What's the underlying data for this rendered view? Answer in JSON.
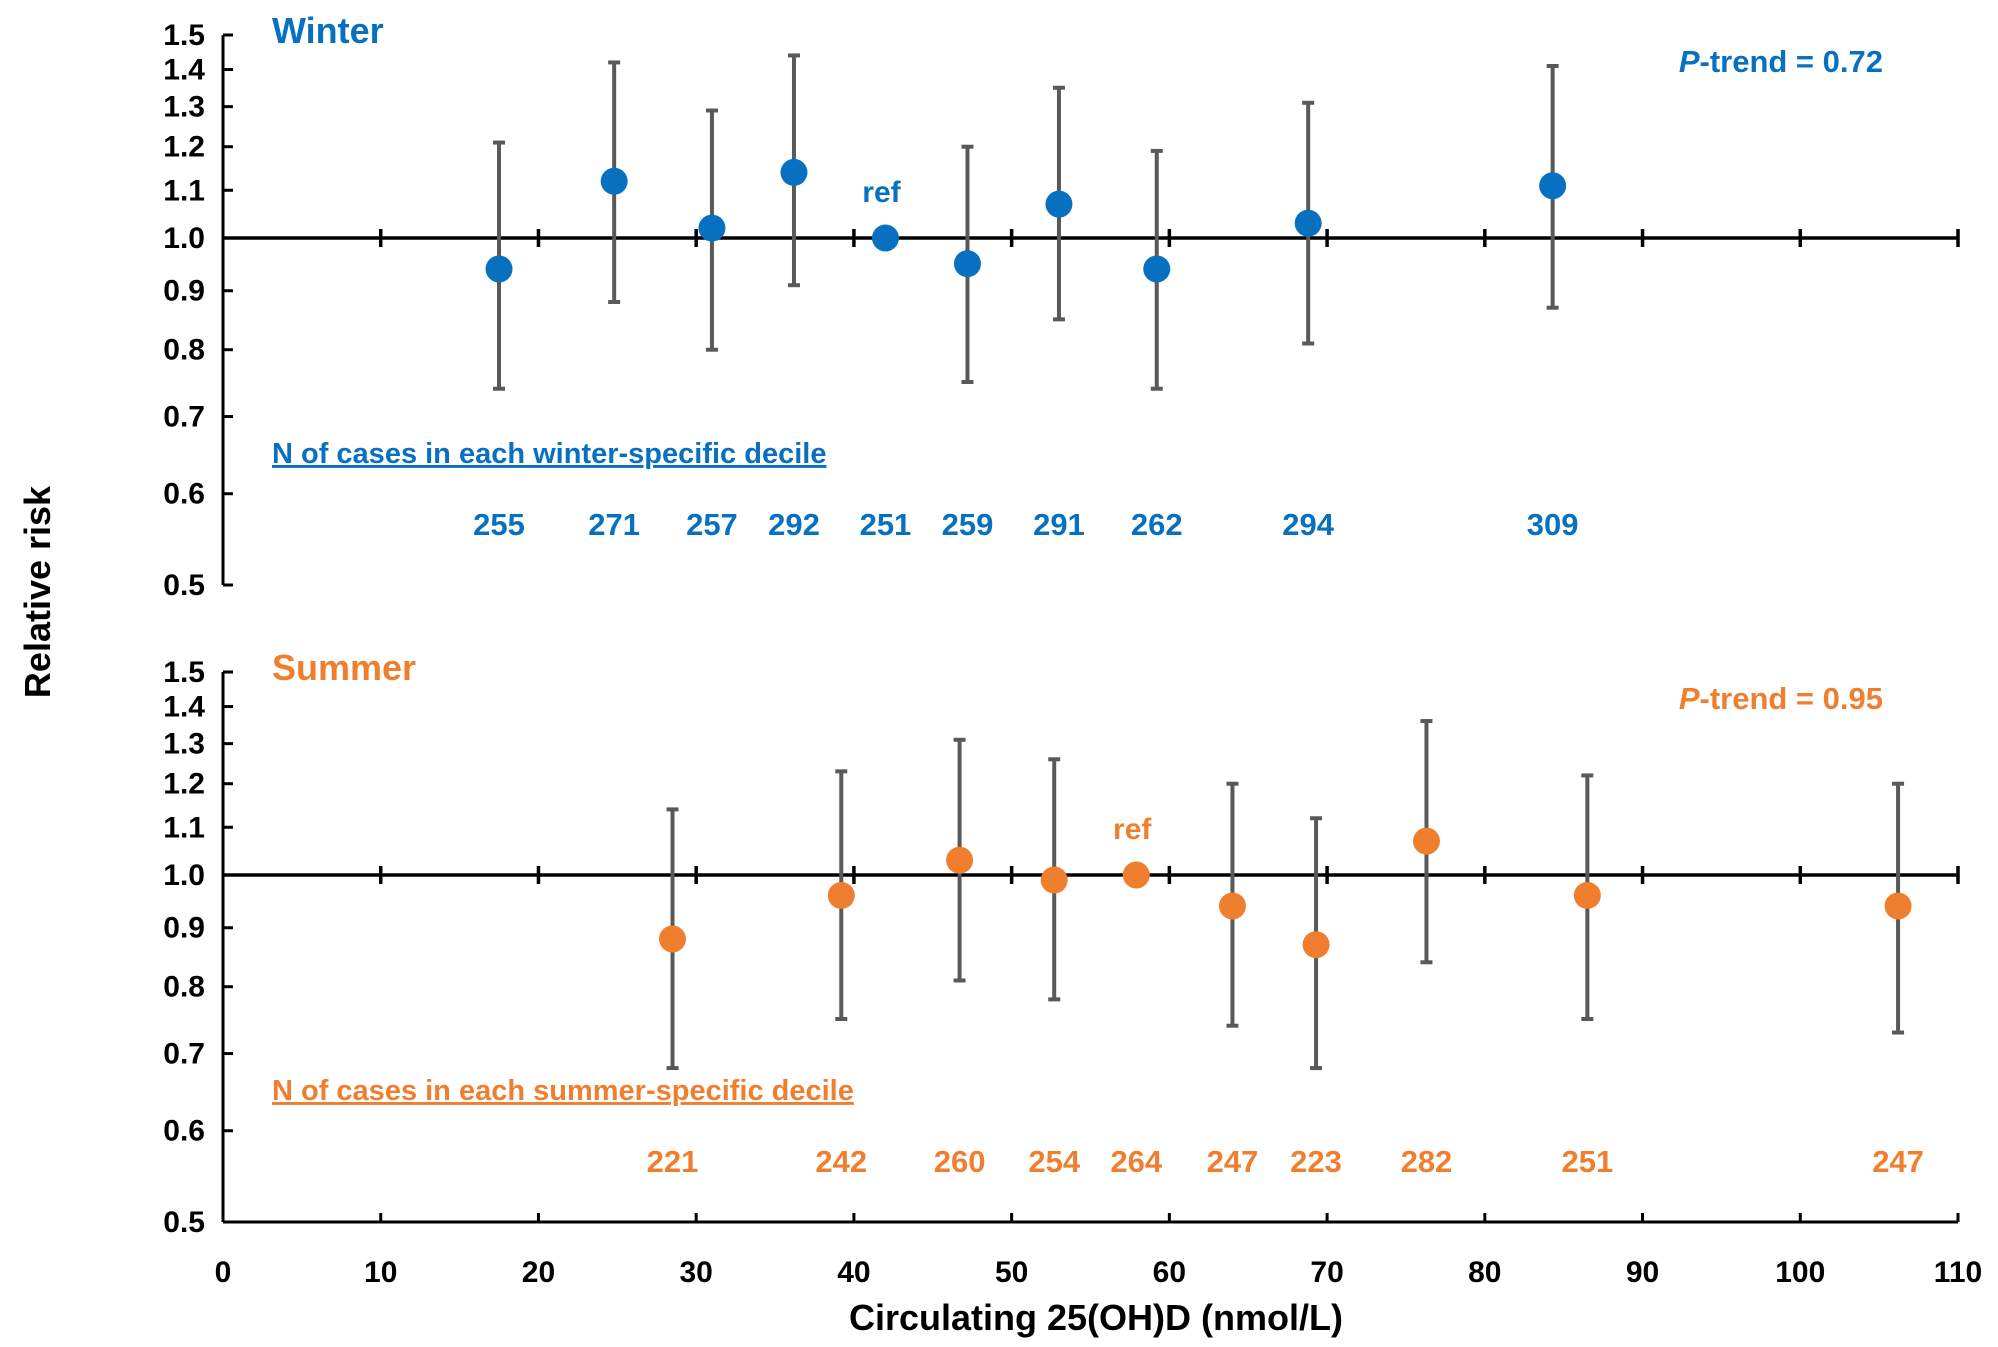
{
  "chart_data": {
    "type": "scatter",
    "xlabel": "Circulating 25(OH)D (nmol/L)",
    "ylabel": "Relative risk",
    "x_ticks": [
      0,
      10,
      20,
      30,
      40,
      50,
      60,
      70,
      80,
      90,
      100,
      110
    ],
    "y_ticks": [
      "0.5",
      "0.6",
      "0.7",
      "0.8",
      "0.9",
      "1.0",
      "1.1",
      "1.2",
      "1.3",
      "1.4",
      "1.5"
    ],
    "xlim": [
      0,
      110
    ],
    "ylim": [
      0.5,
      1.5
    ],
    "y_scale": "log",
    "panels": [
      {
        "title": "Winter",
        "color": "#0870c0",
        "p_trend_prefix": "P",
        "p_trend_rest": "-trend = 0.72",
        "ref_label": "ref",
        "cases_heading": "N of cases in each winter-specific decile",
        "points": [
          {
            "x": 17.5,
            "rr": 0.94,
            "lo": 0.74,
            "hi": 1.21,
            "n": "255"
          },
          {
            "x": 24.8,
            "rr": 1.12,
            "lo": 0.88,
            "hi": 1.42,
            "n": "271"
          },
          {
            "x": 31.0,
            "rr": 1.02,
            "lo": 0.8,
            "hi": 1.29,
            "n": "257"
          },
          {
            "x": 36.2,
            "rr": 1.14,
            "lo": 0.91,
            "hi": 1.44,
            "n": "292"
          },
          {
            "x": 42.0,
            "rr": 1.0,
            "ref": true,
            "n": "251"
          },
          {
            "x": 47.2,
            "rr": 0.95,
            "lo": 0.75,
            "hi": 1.2,
            "n": "259"
          },
          {
            "x": 53.0,
            "rr": 1.07,
            "lo": 0.85,
            "hi": 1.35,
            "n": "291"
          },
          {
            "x": 59.2,
            "rr": 0.94,
            "lo": 0.74,
            "hi": 1.19,
            "n": "262"
          },
          {
            "x": 68.8,
            "rr": 1.03,
            "lo": 0.81,
            "hi": 1.31,
            "n": "294"
          },
          {
            "x": 84.3,
            "rr": 1.11,
            "lo": 0.87,
            "hi": 1.41,
            "n": "309"
          }
        ]
      },
      {
        "title": "Summer",
        "color": "#ef7f2f",
        "p_trend_prefix": "P",
        "p_trend_rest": "-trend = 0.95",
        "ref_label": "ref",
        "cases_heading": "N of cases in each summer-specific decile",
        "points": [
          {
            "x": 28.5,
            "rr": 0.88,
            "lo": 0.68,
            "hi": 1.14,
            "n": "221"
          },
          {
            "x": 39.2,
            "rr": 0.96,
            "lo": 0.75,
            "hi": 1.23,
            "n": "242"
          },
          {
            "x": 46.7,
            "rr": 1.03,
            "lo": 0.81,
            "hi": 1.31,
            "n": "260"
          },
          {
            "x": 52.7,
            "rr": 0.99,
            "lo": 0.78,
            "hi": 1.26,
            "n": "254"
          },
          {
            "x": 57.9,
            "rr": 1.0,
            "ref": true,
            "n": "264"
          },
          {
            "x": 64.0,
            "rr": 0.94,
            "lo": 0.74,
            "hi": 1.2,
            "n": "247"
          },
          {
            "x": 69.3,
            "rr": 0.87,
            "lo": 0.68,
            "hi": 1.12,
            "n": "223"
          },
          {
            "x": 76.3,
            "rr": 1.07,
            "lo": 0.84,
            "hi": 1.36,
            "n": "282"
          },
          {
            "x": 86.5,
            "rr": 0.96,
            "lo": 0.75,
            "hi": 1.22,
            "n": "251"
          },
          {
            "x": 106.2,
            "rr": 0.94,
            "lo": 0.73,
            "hi": 1.2,
            "n": "247"
          }
        ]
      }
    ]
  }
}
